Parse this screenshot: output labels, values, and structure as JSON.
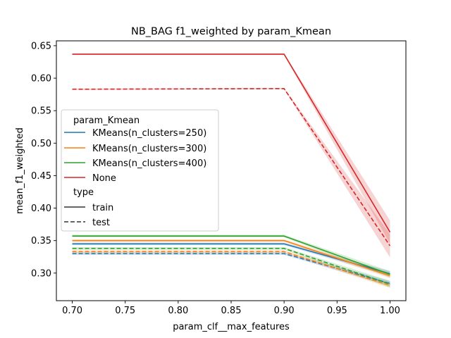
{
  "chart_data": {
    "type": "line",
    "title": "NB_BAG f1_weighted by param_Kmean",
    "xlabel": "param_clf__max_features",
    "ylabel": "mean_f1_weighted",
    "xlim": [
      0.685,
      1.015
    ],
    "ylim": [
      0.2575,
      0.6575
    ],
    "xticks": [
      "0.70",
      "0.75",
      "0.80",
      "0.85",
      "0.90",
      "0.95",
      "1.00"
    ],
    "yticks": [
      "0.30",
      "0.35",
      "0.40",
      "0.45",
      "0.50",
      "0.55",
      "0.60",
      "0.65"
    ],
    "x": [
      0.7,
      0.9,
      1.0
    ],
    "series": [
      {
        "name": "KMeans(n_clusters=250)",
        "type": "train",
        "color": "#1f77b4",
        "values": [
          0.345,
          0.345,
          0.299
        ],
        "ci": [
          0.002,
          0.002,
          0.004
        ]
      },
      {
        "name": "KMeans(n_clusters=250)",
        "type": "test",
        "color": "#1f77b4",
        "values": [
          0.33,
          0.33,
          0.284
        ],
        "ci": [
          0.002,
          0.002,
          0.004
        ]
      },
      {
        "name": "KMeans(n_clusters=300)",
        "type": "train",
        "color": "#ff7f0e",
        "values": [
          0.35,
          0.35,
          0.296
        ],
        "ci": [
          0.002,
          0.002,
          0.004
        ]
      },
      {
        "name": "KMeans(n_clusters=300)",
        "type": "test",
        "color": "#ff7f0e",
        "values": [
          0.333,
          0.333,
          0.281
        ],
        "ci": [
          0.002,
          0.002,
          0.004
        ]
      },
      {
        "name": "KMeans(n_clusters=400)",
        "type": "train",
        "color": "#2ca02c",
        "values": [
          0.357,
          0.357,
          0.298
        ],
        "ci": [
          0.002,
          0.002,
          0.005
        ]
      },
      {
        "name": "KMeans(n_clusters=400)",
        "type": "test",
        "color": "#2ca02c",
        "values": [
          0.338,
          0.338,
          0.283
        ],
        "ci": [
          0.002,
          0.002,
          0.005
        ]
      },
      {
        "name": "None",
        "type": "train",
        "color": "#d62728",
        "values": [
          0.637,
          0.637,
          0.363
        ],
        "ci": [
          0.001,
          0.001,
          0.018
        ]
      },
      {
        "name": "None",
        "type": "test",
        "color": "#d62728",
        "values": [
          0.583,
          0.584,
          0.342
        ],
        "ci": [
          0.001,
          0.001,
          0.018
        ]
      }
    ],
    "legend": {
      "placement": "center-left",
      "hue_title": "param_Kmean",
      "hue_entries": [
        {
          "label": "KMeans(n_clusters=250)",
          "color": "#1f77b4"
        },
        {
          "label": "KMeans(n_clusters=300)",
          "color": "#ff7f0e"
        },
        {
          "label": "KMeans(n_clusters=400)",
          "color": "#2ca02c"
        },
        {
          "label": "None",
          "color": "#d62728"
        }
      ],
      "style_title": "type",
      "style_entries": [
        {
          "label": "train",
          "dash": "solid"
        },
        {
          "label": "test",
          "dash": "dashed"
        }
      ]
    },
    "grid": false
  }
}
